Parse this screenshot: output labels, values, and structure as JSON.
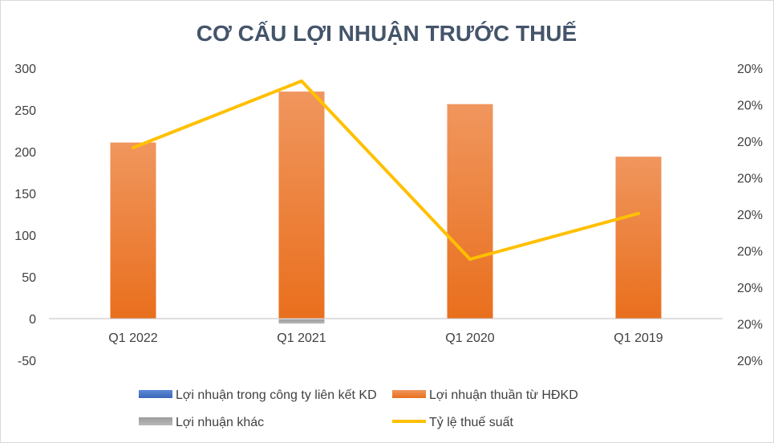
{
  "chart_data": {
    "type": "bar",
    "title": "CƠ CẤU LỢI NHUẬN TRƯỚC THUẾ",
    "categories": [
      "Q1 2022",
      "Q1 2021",
      "Q1 2020",
      "Q1 2019"
    ],
    "series": [
      {
        "name": "Lợi nhuận trong công ty liên kết KD",
        "kind": "bar",
        "color": "#4472c4",
        "values": [
          0,
          0,
          0,
          0
        ]
      },
      {
        "name": "Lợi nhuận thuần từ HĐKD",
        "kind": "bar",
        "color": "#ed7d31",
        "values": [
          211,
          272,
          257,
          194
        ]
      },
      {
        "name": "Lợi nhuận khác",
        "kind": "bar",
        "color": "#a5a5a5",
        "values": [
          0,
          -5,
          0,
          0
        ]
      },
      {
        "name": "Tỷ lệ thuế suất",
        "kind": "line",
        "axis": "right",
        "color": "#ffc000",
        "values": [
          0.2,
          0.2,
          0.2,
          0.2
        ]
      }
    ],
    "y_left": {
      "min": -50,
      "max": 300,
      "ticks": [
        300,
        250,
        200,
        150,
        100,
        50,
        0,
        -50
      ]
    },
    "y_right": {
      "tick_labels": [
        "20%",
        "20%",
        "20%",
        "20%",
        "20%",
        "20%",
        "20%",
        "20%",
        "20%"
      ]
    },
    "grid": false,
    "legend_position": "bottom"
  }
}
